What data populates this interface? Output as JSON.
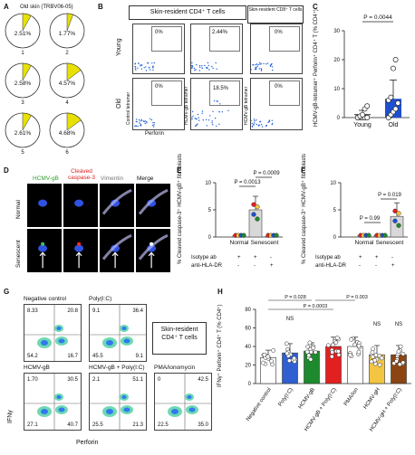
{
  "panelA": {
    "letter": "A",
    "title": "Old skin (TRBV06-05)",
    "pies": [
      {
        "pct": "2.51%",
        "n": "1",
        "frac": 0.0251
      },
      {
        "pct": "1.77%",
        "n": "2",
        "frac": 0.0177
      },
      {
        "pct": "2.58%",
        "n": "3",
        "frac": 0.0258
      },
      {
        "pct": "4.57%",
        "n": "4",
        "frac": 0.0457
      },
      {
        "pct": "2.61%",
        "n": "5",
        "frac": 0.0261
      },
      {
        "pct": "4.68%",
        "n": "6",
        "frac": 0.0468
      }
    ],
    "colors": {
      "slice": "#e8e000",
      "pie": "#ffffff"
    }
  },
  "panelB": {
    "letter": "B",
    "header_cd4": "Skin-resident CD4⁺ T cells",
    "header_cd8": "Skin-resident CD8⁺ T cells",
    "row_young": "Young",
    "row_old": "Old",
    "y_control": "Control tetramer",
    "y_hcmv": "HCMV-gB tetramer",
    "y_hcmv2": "HCMV-gB tetramer",
    "x_label": "Perforin",
    "values": {
      "young_ctrl": "0%",
      "young_hcmv": "2.44%",
      "young_cd8": "0%",
      "old_ctrl": "0%",
      "old_hcmv": "18.5%",
      "old_cd8": "0%"
    }
  },
  "panelC": {
    "letter": "C",
    "pvalue": "P = 0.0044",
    "ylabel": "HCMV-gB-tetramer⁺ Perforin⁺ CD4⁺ T (% CD4⁺)",
    "yticks": [
      "0",
      "10",
      "20",
      "30"
    ],
    "categories": [
      "Young",
      "Old"
    ]
  },
  "panelD": {
    "letter": "D",
    "ch1": "HCMV-gB",
    "ch2": "Cleaved caspase-3",
    "ch3": "Vimentin",
    "ch4": "Merge",
    "row1": "Normal",
    "row2": "Senescent"
  },
  "panelE": {
    "letter": "E",
    "p1": "P = 0.0013",
    "p2": "P = 0.0009",
    "ylabel": "% Cleaved caspase-3⁺ HCMV-gB⁺ fibroblasts",
    "yticks": [
      "0",
      "5",
      "10"
    ],
    "groups": [
      "Normal",
      "Senescent"
    ],
    "row1_label": "Isotype ab",
    "row2_label": "anti-HLA-DR",
    "row1_signs": [
      "+",
      "+",
      "-"
    ],
    "row2_signs": [
      "-",
      "-",
      "+"
    ]
  },
  "panelF": {
    "letter": "F",
    "p1": "P = 0.99",
    "p2": "P = 0.019",
    "ylabel": "% Cleaved caspase-3⁺ HCMV-gB⁺ fibroblasts",
    "yticks": [
      "0",
      "5",
      "10"
    ],
    "groups": [
      "Normal",
      "Senescent"
    ],
    "row1_label": "Isotype ab",
    "row2_label": "anti-HLA-DR",
    "row1_signs": [
      "+",
      "+",
      "-"
    ],
    "row2_signs": [
      "-",
      "-",
      "+"
    ]
  },
  "panelG": {
    "letter": "G",
    "legend": "Skin-resident CD4⁺ T cells",
    "ylabel": "IFNγ",
    "xlabel": "Perforin",
    "plots": [
      {
        "title": "Negative control",
        "q": [
          "8.33",
          "20.8",
          "54.2",
          "16.7"
        ]
      },
      {
        "title": "Poly(I:C)",
        "q": [
          "9.1",
          "36.4",
          "45.5",
          "9.1"
        ]
      },
      {
        "title": "HCMV-gB",
        "q": [
          "1.70",
          "30.5",
          "27.1",
          "40.7"
        ]
      },
      {
        "title": "HCMV-gB + Poly(I:C)",
        "q": [
          "2.1",
          "51.1",
          "25.5",
          "21.3"
        ]
      },
      {
        "title": "PMA/ionomycin",
        "q": [
          "0",
          "42.5",
          "22.5",
          "35.0"
        ]
      }
    ]
  },
  "panelH": {
    "letter": "H",
    "ylabel": "IFNγ⁺ Perforin⁺ CD4⁺ T (% CD4⁺)",
    "yticks": [
      "0",
      "20",
      "40",
      "60",
      "80"
    ],
    "ns1": "NS",
    "p_a": "P = 0.028",
    "p_b": "P = 0.003",
    "p_c": "P = 0.0003",
    "ns2": "NS",
    "ns3": "NS"
  },
  "chart_data": [
    {
      "type": "scatter",
      "panel": "C",
      "categories": [
        "Young",
        "Old"
      ],
      "ylim": [
        0,
        30
      ],
      "series": [
        {
          "name": "Young",
          "mean": 1,
          "sd": 1.5,
          "values": [
            0,
            0,
            0,
            0,
            0,
            0,
            0.5,
            1,
            3,
            4
          ]
        },
        {
          "name": "Old",
          "mean": 6.5,
          "sd": 6.5,
          "values": [
            0,
            1,
            2,
            3,
            5,
            6,
            7,
            17,
            20
          ]
        }
      ]
    },
    {
      "type": "bar",
      "panel": "E",
      "categories": [
        "Normal",
        "Senescent",
        "Senescent anti-HLA-DR"
      ],
      "values": [
        0.3,
        5.0,
        0.1
      ],
      "errors": [
        0.2,
        2.5,
        0.1
      ],
      "ylim": [
        0,
        10
      ]
    },
    {
      "type": "bar",
      "panel": "F",
      "categories": [
        "Normal isotype",
        "Normal anti-HLA-DR",
        "Senescent anti-HLA-DR"
      ],
      "values": [
        0.3,
        0.3,
        3.8
      ],
      "errors": [
        0.2,
        0.2,
        2.5
      ],
      "ylim": [
        0,
        10
      ]
    },
    {
      "type": "bar",
      "panel": "H",
      "categories": [
        "Negative control",
        "Poly(I:C)",
        "HCMV-gB",
        "HCMV-gB + Poly(I:C)",
        "PMA/ion",
        "HCMV-gH",
        "HCMV-gH + Poly(I:C)"
      ],
      "values": [
        28,
        33,
        35,
        40,
        40,
        31,
        31
      ],
      "errors": [
        8,
        10,
        9,
        10,
        10,
        10,
        10
      ],
      "colors": [
        "#ffffff",
        "#2f5fd0",
        "#1e8a2e",
        "#e32020",
        "#ffffff",
        "#f4c542",
        "#8b4513"
      ],
      "ylim": [
        0,
        80
      ]
    }
  ]
}
